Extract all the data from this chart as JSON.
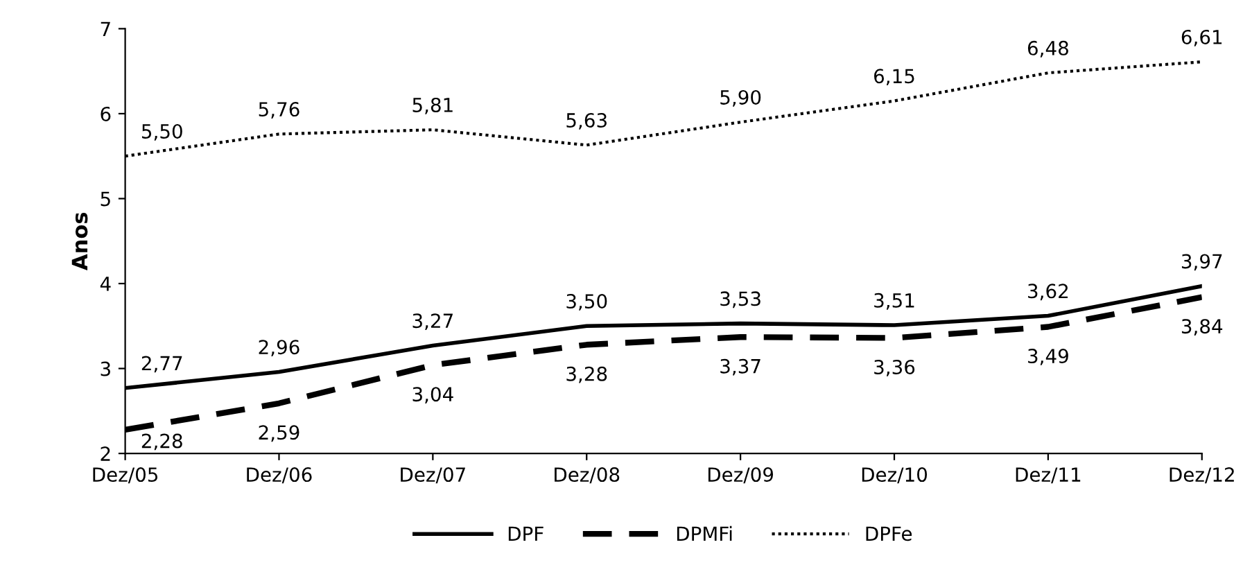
{
  "chart_data": {
    "type": "line",
    "ylabel": "Anos",
    "categories": [
      "Dez/05",
      "Dez/06",
      "Dez/07",
      "Dez/08",
      "Dez/09",
      "Dez/10",
      "Dez/11",
      "Dez/12"
    ],
    "ylim": [
      2,
      7
    ],
    "yticks": [
      2,
      3,
      4,
      5,
      6,
      7
    ],
    "grid": false,
    "legend": "bottom",
    "marker": "none",
    "series": [
      {
        "name": "DPF",
        "color": "#000000",
        "line_style": "solid",
        "values": [
          2.77,
          2.96,
          3.27,
          3.5,
          3.53,
          3.51,
          3.62,
          3.97
        ],
        "value_labels": [
          "2,77",
          "2,96",
          "3,27",
          "3,50",
          "3,53",
          "3,51",
          "3,62",
          "3,97"
        ]
      },
      {
        "name": "DPMFi",
        "color": "#000000",
        "line_style": "dashed",
        "values": [
          2.28,
          2.59,
          3.04,
          3.28,
          3.37,
          3.36,
          3.49,
          3.84
        ],
        "value_labels": [
          "2,28",
          "2,59",
          "3,04",
          "3,28",
          "3,37",
          "3,36",
          "3,49",
          "3,84"
        ]
      },
      {
        "name": "DPFe",
        "color": "#000000",
        "line_style": "dotted",
        "values": [
          5.5,
          5.76,
          5.81,
          5.63,
          5.9,
          6.15,
          6.48,
          6.61
        ],
        "value_labels": [
          "5,50",
          "5,76",
          "5,81",
          "5,63",
          "5,90",
          "6,15",
          "6,48",
          "6,61"
        ]
      }
    ]
  }
}
